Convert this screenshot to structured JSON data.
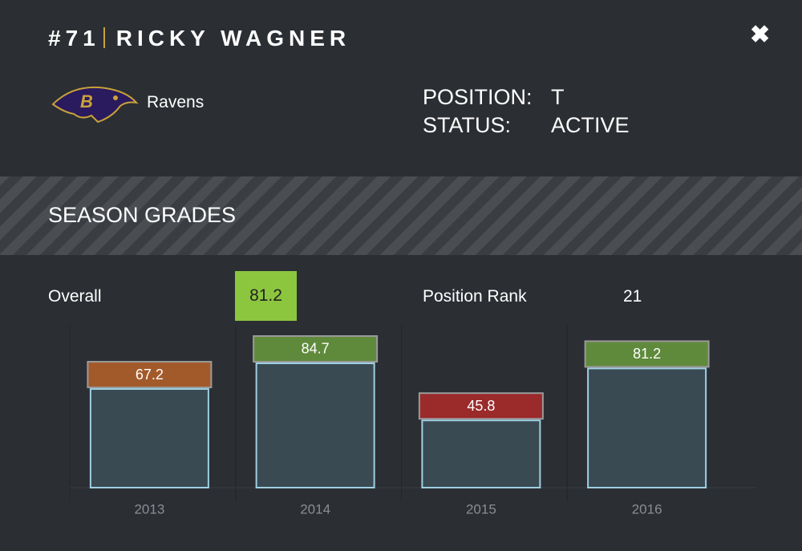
{
  "header": {
    "number": "#71",
    "name": "RICKY WAGNER"
  },
  "team": {
    "name": "Ravens"
  },
  "info": {
    "position_label": "POSITION:",
    "position": "T",
    "status_label": "STATUS:",
    "status": "ACTIVE"
  },
  "section": {
    "title": "SEASON GRADES"
  },
  "summary": {
    "overall_label": "Overall",
    "overall": "81.2",
    "rank_label": "Position Rank",
    "rank": "21"
  },
  "chart_data": {
    "type": "bar",
    "categories": [
      "2013",
      "2014",
      "2015",
      "2016"
    ],
    "values": [
      67.2,
      84.7,
      45.8,
      81.2
    ],
    "colors": [
      "#a35a2a",
      "#5f8a3c",
      "#9b2a2b",
      "#5f8a3c"
    ],
    "ylim": [
      0,
      100
    ]
  }
}
